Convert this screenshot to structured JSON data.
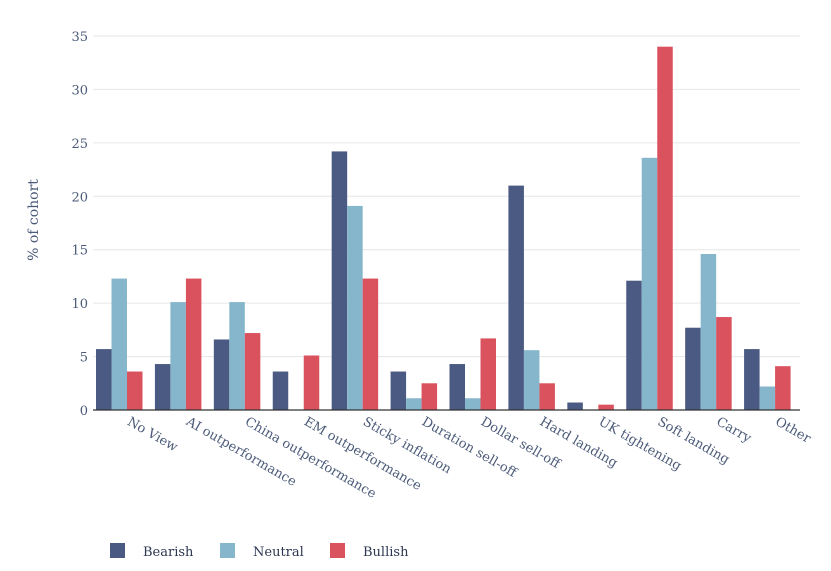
{
  "chart_data": {
    "type": "bar",
    "ylabel": "% of cohort",
    "ylim": [
      0,
      35
    ],
    "yticks": [
      0,
      5,
      10,
      15,
      20,
      25,
      30,
      35
    ],
    "grid": true,
    "legend_position": "bottom-left",
    "categories": [
      "No View",
      "AI outperformance",
      "China outperformance",
      "EM outperformance",
      "Sticky inflation",
      "Duration sell-off",
      "Dollar sell-off",
      "Hard landing",
      "UK tightening",
      "Soft landing",
      "Carry",
      "Other"
    ],
    "series": [
      {
        "name": "Bearish",
        "color": "#4a5a82",
        "values": [
          5.7,
          4.3,
          6.6,
          3.6,
          24.2,
          3.6,
          4.3,
          21.0,
          0.7,
          12.1,
          7.7,
          5.7
        ]
      },
      {
        "name": "Neutral",
        "color": "#86b6cb",
        "values": [
          12.3,
          10.1,
          10.1,
          0,
          19.1,
          1.1,
          1.1,
          5.6,
          0,
          23.6,
          14.6,
          2.2
        ]
      },
      {
        "name": "Bullish",
        "color": "#d9525e",
        "values": [
          3.6,
          12.3,
          7.2,
          5.1,
          12.3,
          2.5,
          6.7,
          2.5,
          0.5,
          34.0,
          8.7,
          4.1
        ]
      }
    ]
  }
}
